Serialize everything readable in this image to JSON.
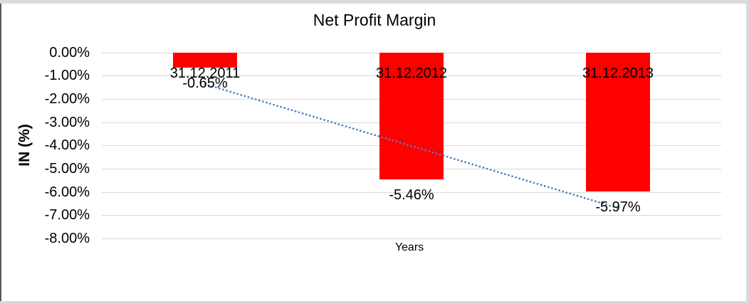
{
  "chart_data": {
    "type": "bar",
    "title": "Net Profit Margin",
    "xlabel": "Years",
    "ylabel": "IN (%)",
    "categories": [
      "31.12.2011",
      "31.12.2012",
      "31.12.2013"
    ],
    "values": [
      -0.65,
      -5.46,
      -5.97
    ],
    "data_labels": [
      "-0.65%",
      "-5.46%",
      "-5.97%"
    ],
    "yticks": [
      {
        "value": 0,
        "label": "0.00%"
      },
      {
        "value": -1,
        "label": "-1.00%"
      },
      {
        "value": -2,
        "label": "-2.00%"
      },
      {
        "value": -3,
        "label": "-3.00%"
      },
      {
        "value": -4,
        "label": "-4.00%"
      },
      {
        "value": -5,
        "label": "-5.00%"
      },
      {
        "value": -6,
        "label": "-6.00%"
      },
      {
        "value": -7,
        "label": "-7.00%"
      },
      {
        "value": -8,
        "label": "-8.00%"
      }
    ],
    "ylim": [
      0,
      -8
    ],
    "grid": true,
    "legend_position": "none",
    "bar_color": "#FF0000",
    "gridline_color": "#D9D9D9",
    "trendline": {
      "type": "linear",
      "style": "dotted",
      "color": "#4F81BD"
    }
  }
}
